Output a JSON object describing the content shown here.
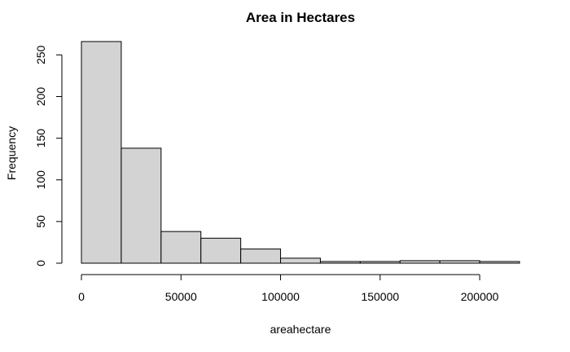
{
  "chart_data": {
    "type": "bar",
    "title": "Area in Hectares",
    "xlabel": "areahectare",
    "ylabel": "Frequency",
    "bin_edges": [
      0,
      20000,
      40000,
      60000,
      80000,
      100000,
      120000,
      140000,
      160000,
      180000,
      200000,
      220000
    ],
    "values": [
      266,
      138,
      38,
      30,
      17,
      6,
      2,
      2,
      3,
      3,
      2
    ],
    "xlim": [
      0,
      220000
    ],
    "ylim": [
      0,
      266
    ],
    "x_ticks": [
      0,
      50000,
      100000,
      150000,
      200000
    ],
    "x_tick_labels": [
      "0",
      "50000",
      "100000",
      "150000",
      "200000"
    ],
    "y_ticks": [
      0,
      50,
      100,
      150,
      200,
      250
    ],
    "y_tick_labels": [
      "0",
      "50",
      "100",
      "150",
      "200",
      "250"
    ],
    "bar_color": "#d3d3d3",
    "bar_edge_color": "#000000",
    "grid": false,
    "legend": "none"
  }
}
